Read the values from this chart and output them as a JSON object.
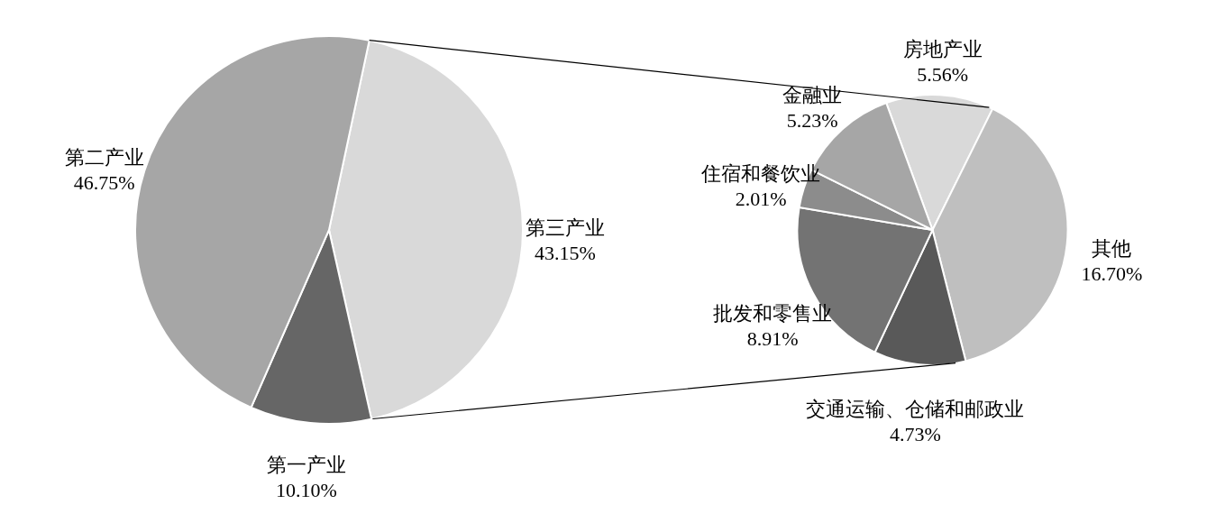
{
  "chart_data": [
    {
      "type": "pie",
      "categories": [
        "第三产业",
        "第一产业",
        "第二产业"
      ],
      "values": [
        43.15,
        10.1,
        46.75
      ],
      "colors": [
        "#d9d9d9",
        "#666666",
        "#a6a6a6"
      ],
      "value_labels": [
        "43.15%",
        "10.10%",
        "46.75%"
      ]
    },
    {
      "type": "pie",
      "categories": [
        "房地产业",
        "其他",
        "交通运输、仓储和邮政业",
        "批发和零售业",
        "住宿和餐饮业",
        "金融业"
      ],
      "values": [
        5.56,
        16.7,
        4.73,
        8.91,
        2.01,
        5.23
      ],
      "colors": [
        "#d9d9d9",
        "#bfbfbf",
        "#595959",
        "#737373",
        "#8c8c8c",
        "#a6a6a6"
      ],
      "value_labels": [
        "5.56%",
        "16.70%",
        "4.73%",
        "8.91%",
        "2.01%",
        "5.23%"
      ]
    }
  ]
}
